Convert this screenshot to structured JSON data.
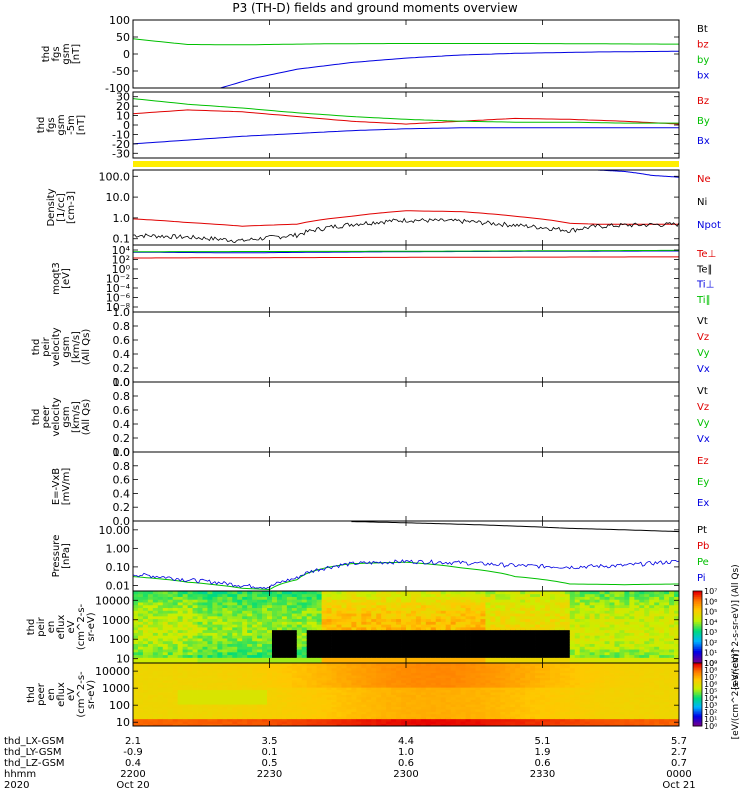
{
  "title": "P3 (TH-D) fields and ground moments overview",
  "colors": {
    "red": "#e00000",
    "green": "#00c000",
    "blue": "#0000e0",
    "black": "#000000",
    "yellow": "#ffee00"
  },
  "chart_data": [
    {
      "type": "line",
      "id": "fgs",
      "ylabel": [
        "thd",
        "fgs",
        "gsm",
        "[nT]"
      ],
      "yscale": "linear",
      "ylim": [
        -100,
        100
      ],
      "yticks": [
        "100",
        "50",
        "0",
        "-50",
        "-100"
      ],
      "legend": [
        {
          "label": "Bt",
          "color": "black"
        },
        {
          "label": "bz",
          "color": "red"
        },
        {
          "label": "by",
          "color": "green"
        },
        {
          "label": "bx",
          "color": "blue"
        }
      ],
      "series": [
        {
          "name": "by",
          "color": "green",
          "points": [
            [
              0,
              45
            ],
            [
              0.04,
              38
            ],
            [
              0.1,
              28
            ],
            [
              0.2,
              27
            ],
            [
              0.35,
              30
            ],
            [
              0.5,
              31
            ],
            [
              0.7,
              31
            ],
            [
              0.85,
              30
            ],
            [
              1,
              29
            ]
          ]
        },
        {
          "name": "bx",
          "color": "blue",
          "points": [
            [
              0.16,
              -100
            ],
            [
              0.22,
              -72
            ],
            [
              0.3,
              -45
            ],
            [
              0.4,
              -25
            ],
            [
              0.5,
              -12
            ],
            [
              0.6,
              -3
            ],
            [
              0.7,
              2
            ],
            [
              0.85,
              6
            ],
            [
              1,
              8
            ]
          ]
        }
      ]
    },
    {
      "type": "line",
      "id": "fgs_dsl",
      "ylabel": [
        "thd",
        "fgs",
        "gsm",
        "-5m",
        "[nT]"
      ],
      "yscale": "linear",
      "ylim": [
        -35,
        35
      ],
      "yticks": [
        "30",
        "20",
        "10",
        "0",
        "-10",
        "-20",
        "-30"
      ],
      "legend": [
        {
          "label": "Bz",
          "color": "red"
        },
        {
          "label": "By",
          "color": "green"
        },
        {
          "label": "Bx",
          "color": "blue"
        }
      ],
      "series": [
        {
          "name": "Bz",
          "color": "red",
          "points": [
            [
              0,
              12
            ],
            [
              0.1,
              16
            ],
            [
              0.2,
              14
            ],
            [
              0.3,
              9
            ],
            [
              0.4,
              4
            ],
            [
              0.5,
              1
            ],
            [
              0.6,
              4
            ],
            [
              0.7,
              7
            ],
            [
              0.8,
              6
            ],
            [
              0.9,
              4
            ],
            [
              1,
              1
            ]
          ]
        },
        {
          "name": "By",
          "color": "green",
          "points": [
            [
              0,
              28
            ],
            [
              0.1,
              22
            ],
            [
              0.2,
              18
            ],
            [
              0.3,
              13
            ],
            [
              0.4,
              9
            ],
            [
              0.5,
              6
            ],
            [
              0.6,
              4
            ],
            [
              0.7,
              3
            ],
            [
              0.8,
              3
            ],
            [
              0.9,
              2
            ],
            [
              1,
              2
            ]
          ]
        },
        {
          "name": "Bx",
          "color": "blue",
          "points": [
            [
              0,
              -20
            ],
            [
              0.1,
              -16
            ],
            [
              0.2,
              -12
            ],
            [
              0.3,
              -9
            ],
            [
              0.4,
              -6
            ],
            [
              0.5,
              -4
            ],
            [
              0.6,
              -3
            ],
            [
              0.7,
              -3
            ],
            [
              0.8,
              -3
            ],
            [
              0.9,
              -3
            ],
            [
              1,
              -3
            ]
          ]
        }
      ]
    },
    {
      "type": "line",
      "id": "density",
      "ylabel": [
        "Density",
        "[1/cc]",
        "[cm-3]"
      ],
      "yscale": "log",
      "ylim": [
        0.05,
        200
      ],
      "yticks": [
        "100.0",
        "10.0",
        "1.0",
        "0.1"
      ],
      "legend": [
        {
          "label": "Ne",
          "color": "red"
        },
        {
          "label": "Ni",
          "color": "black"
        },
        {
          "label": "Npot",
          "color": "blue"
        }
      ],
      "series": [
        {
          "name": "Ne",
          "color": "red",
          "points": [
            [
              0,
              0.9
            ],
            [
              0.1,
              0.6
            ],
            [
              0.2,
              0.4
            ],
            [
              0.3,
              0.5
            ],
            [
              0.4,
              1.2
            ],
            [
              0.5,
              2.2
            ],
            [
              0.6,
              2.0
            ],
            [
              0.7,
              1.2
            ],
            [
              0.8,
              0.55
            ],
            [
              0.85,
              0.5
            ],
            [
              0.9,
              0.5
            ],
            [
              1,
              0.5
            ]
          ]
        },
        {
          "name": "Ni",
          "color": "black",
          "noise": true,
          "points": [
            [
              0,
              0.15
            ],
            [
              0.1,
              0.12
            ],
            [
              0.2,
              0.08
            ],
            [
              0.3,
              0.15
            ],
            [
              0.4,
              0.5
            ],
            [
              0.5,
              0.8
            ],
            [
              0.6,
              0.7
            ],
            [
              0.7,
              0.45
            ],
            [
              0.8,
              0.25
            ],
            [
              0.85,
              0.4
            ],
            [
              0.9,
              0.45
            ],
            [
              1,
              0.5
            ]
          ]
        },
        {
          "name": "Npot",
          "color": "blue",
          "points": [
            [
              0.85,
              200
            ],
            [
              0.9,
              170
            ],
            [
              0.95,
              110
            ],
            [
              1,
              90
            ]
          ]
        }
      ]
    },
    {
      "type": "line",
      "id": "temperature",
      "ylabel": [
        "moqt3",
        "[eV]"
      ],
      "yscale": "log",
      "ylim": [
        1e-08,
        100000.0
      ],
      "yticks": [
        "10⁴",
        "10²",
        "10⁰",
        "10⁻²",
        "10⁻⁴",
        "10⁻⁶",
        "10⁻⁸"
      ],
      "legend": [
        {
          "label": "Te⊥",
          "color": "red"
        },
        {
          "label": "Te∥",
          "color": "black"
        },
        {
          "label": "Ti⊥",
          "color": "blue"
        },
        {
          "label": "Ti∥",
          "color": "green"
        }
      ],
      "series": [
        {
          "name": "Ti",
          "color": "blue",
          "points": [
            [
              0,
              4000
            ],
            [
              0.2,
              3000
            ],
            [
              0.5,
              5000
            ],
            [
              1,
              7000
            ]
          ]
        },
        {
          "name": "Ti2",
          "color": "green",
          "points": [
            [
              0,
              5000
            ],
            [
              0.5,
              6000
            ],
            [
              1,
              9000
            ]
          ]
        },
        {
          "name": "Te",
          "color": "red",
          "points": [
            [
              0,
              300
            ],
            [
              0.5,
              400
            ],
            [
              1,
              500
            ]
          ]
        }
      ]
    },
    {
      "type": "line",
      "id": "peir_velocity",
      "ylabel": [
        "thd",
        "peir",
        "velocity",
        "gsm",
        "[km/s]",
        "(All Qs)"
      ],
      "yscale": "linear",
      "ylim": [
        0,
        1
      ],
      "yticks": [
        "1.0",
        "0.8",
        "0.6",
        "0.4",
        "0.2",
        "0.0"
      ],
      "legend": [
        {
          "label": "Vt",
          "color": "black"
        },
        {
          "label": "Vz",
          "color": "red"
        },
        {
          "label": "Vy",
          "color": "green"
        },
        {
          "label": "Vx",
          "color": "blue"
        }
      ],
      "series": []
    },
    {
      "type": "line",
      "id": "peer_velocity",
      "ylabel": [
        "thd",
        "peer",
        "velocity",
        "gsm",
        "[km/s]",
        "(All Qs)"
      ],
      "yscale": "linear",
      "ylim": [
        0,
        1
      ],
      "yticks": [
        "1.0",
        "0.8",
        "0.6",
        "0.4",
        "0.2",
        "0.0"
      ],
      "legend": [
        {
          "label": "Vt",
          "color": "black"
        },
        {
          "label": "Vz",
          "color": "red"
        },
        {
          "label": "Vy",
          "color": "green"
        },
        {
          "label": "Vx",
          "color": "blue"
        }
      ],
      "series": []
    },
    {
      "type": "line",
      "id": "efield",
      "ylabel": [
        "E=-VxB",
        "[mV/m]"
      ],
      "yscale": "linear",
      "ylim": [
        0,
        1
      ],
      "yticks": [
        "1.0",
        "0.8",
        "0.6",
        "0.4",
        "0.2",
        "0.0"
      ],
      "legend": [
        {
          "label": "Ez",
          "color": "red"
        },
        {
          "label": "Ey",
          "color": "green"
        },
        {
          "label": "Ex",
          "color": "blue"
        }
      ],
      "series": []
    },
    {
      "type": "line",
      "id": "pressure",
      "ylabel": [
        "Pressure",
        "[nPa]"
      ],
      "yscale": "log",
      "ylim": [
        0.005,
        30
      ],
      "yticks": [
        "10.00",
        "1.00",
        "0.10",
        "0.01"
      ],
      "legend": [
        {
          "label": "Pt",
          "color": "black"
        },
        {
          "label": "Pb",
          "color": "red"
        },
        {
          "label": "Pe",
          "color": "green"
        },
        {
          "label": "Pi",
          "color": "blue"
        }
      ],
      "series": [
        {
          "name": "Pt",
          "color": "black",
          "points": [
            [
              0.4,
              28
            ],
            [
              0.6,
              20
            ],
            [
              0.8,
              12
            ],
            [
              1,
              8
            ]
          ]
        },
        {
          "name": "Pe",
          "color": "green",
          "points": [
            [
              0,
              0.03
            ],
            [
              0.1,
              0.015
            ],
            [
              0.2,
              0.007
            ],
            [
              0.25,
              0.006
            ],
            [
              0.3,
              0.02
            ],
            [
              0.4,
              0.15
            ],
            [
              0.5,
              0.18
            ],
            [
              0.6,
              0.09
            ],
            [
              0.7,
              0.03
            ],
            [
              0.8,
              0.012
            ],
            [
              0.9,
              0.011
            ],
            [
              1,
              0.012
            ]
          ]
        },
        {
          "name": "Pi",
          "color": "blue",
          "noise": true,
          "points": [
            [
              0,
              0.04
            ],
            [
              0.1,
              0.02
            ],
            [
              0.2,
              0.01
            ],
            [
              0.25,
              0.008
            ],
            [
              0.3,
              0.025
            ],
            [
              0.4,
              0.15
            ],
            [
              0.5,
              0.2
            ],
            [
              0.6,
              0.17
            ],
            [
              0.7,
              0.12
            ],
            [
              0.8,
              0.1
            ],
            [
              0.9,
              0.12
            ],
            [
              1,
              0.2
            ]
          ]
        }
      ]
    },
    {
      "type": "heatmap",
      "id": "peir_spec",
      "ylabel": [
        "thd",
        "peir",
        "en",
        "eflux",
        "eV",
        "(cm^2-s-",
        "sr-eV)"
      ],
      "yscale": "log",
      "ylim": [
        6,
        30000
      ],
      "yticks": [
        "10000",
        "1000",
        "100",
        "10"
      ],
      "colorbar": {
        "label": "[eV/(cm^2-s-sr-eV)] (All Qs)",
        "ticks": [
          "10⁷",
          "10⁶",
          "10⁵",
          "10⁴",
          "10³",
          "10²",
          "10¹",
          "10⁰"
        ],
        "min_exp": 0,
        "max_exp": 7
      },
      "description_levels": [
        {
          "t0": 0,
          "t1": 0.12,
          "low": 3.5,
          "high": 4.3
        },
        {
          "t0": 0.12,
          "t1": 0.35,
          "low": 3.3,
          "high": 4.0
        },
        {
          "t0": 0.35,
          "t1": 0.65,
          "low": 4.4,
          "high": 5.5
        },
        {
          "t0": 0.65,
          "t1": 0.8,
          "low": 4.2,
          "high": 4.9
        },
        {
          "t0": 0.8,
          "t1": 1,
          "low": 3.6,
          "high": 4.5
        }
      ]
    },
    {
      "type": "heatmap",
      "id": "peer_spec",
      "ylabel": [
        "thd",
        "peer",
        "en",
        "eflux",
        "eV",
        "(cm^2-s-",
        "sr-eV)"
      ],
      "yscale": "log",
      "ylim": [
        6,
        30000
      ],
      "yticks": [
        "10000",
        "1000",
        "100",
        "10"
      ],
      "colorbar": {
        "label": "[eV/(cm^2-s-sr-eV)]",
        "ticks": [
          "10⁹",
          "10⁸",
          "10⁷",
          "10⁶",
          "10⁵",
          "10⁴",
          "10³",
          "10²",
          "10¹",
          "10⁰"
        ],
        "min_exp": 0,
        "max_exp": 9
      }
    }
  ],
  "x_axis": {
    "row_labels": [
      "thd_LX-GSM",
      "thd_LY-GSM",
      "thd_LZ-GSM",
      "hhmm",
      "2020"
    ],
    "ticks": [
      {
        "lx": "2.1",
        "ly": "-0.9",
        "lz": "0.4",
        "hhmm": "2200",
        "date": "Oct 20"
      },
      {
        "lx": "3.5",
        "ly": "0.1",
        "lz": "0.5",
        "hhmm": "2230",
        "date": ""
      },
      {
        "lx": "4.4",
        "ly": "1.0",
        "lz": "0.6",
        "hhmm": "2300",
        "date": ""
      },
      {
        "lx": "5.1",
        "ly": "1.9",
        "lz": "0.6",
        "hhmm": "2330",
        "date": ""
      },
      {
        "lx": "5.7",
        "ly": "2.7",
        "lz": "0.7",
        "hhmm": "0000",
        "date": "Oct 21"
      }
    ]
  }
}
